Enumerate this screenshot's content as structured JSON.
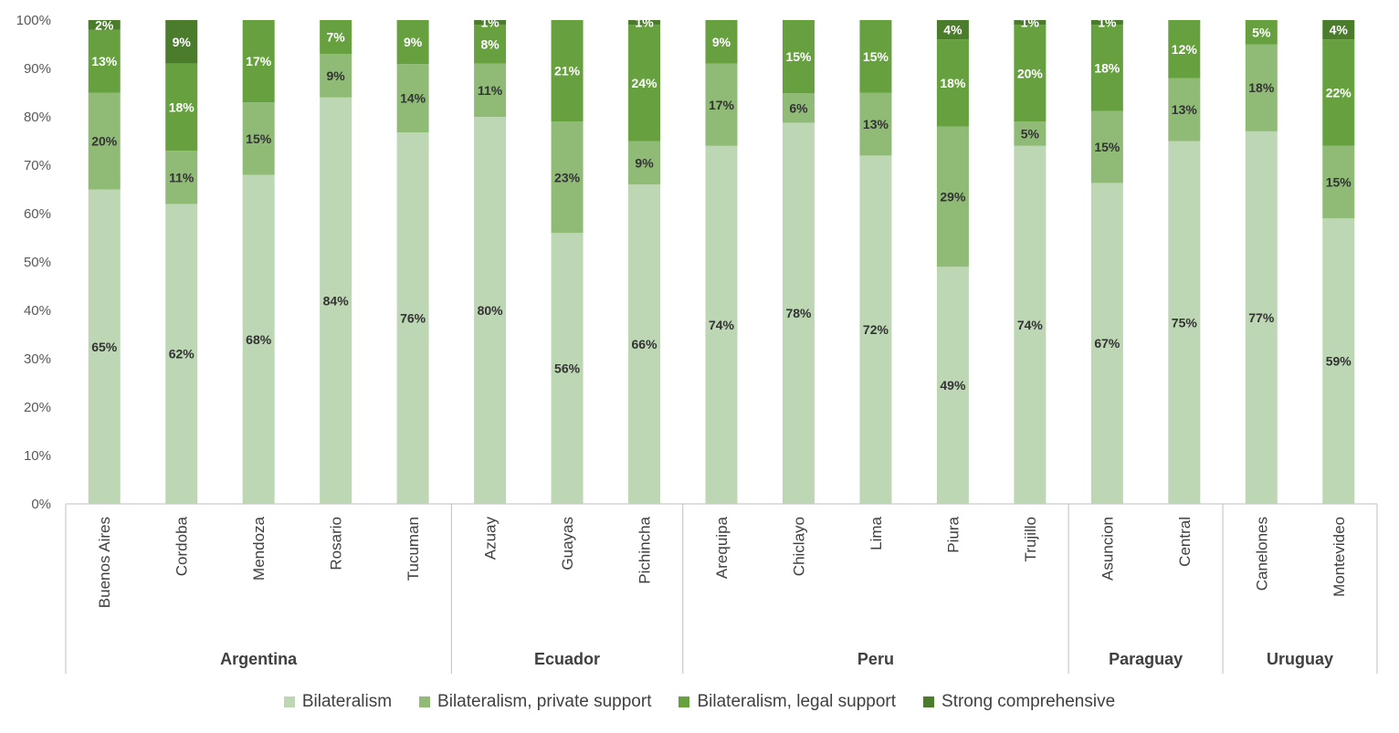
{
  "chart_data": {
    "type": "bar",
    "stacked": true,
    "percent_stacked": true,
    "categories": [
      "Buenos Aires",
      "Cordoba",
      "Mendoza",
      "Rosario",
      "Tucuman",
      "Azuay",
      "Guayas",
      "Pichincha",
      "Arequipa",
      "Chiclayo",
      "Lima",
      "Piura",
      "Trujillo",
      "Asuncion",
      "Central",
      "Canelones",
      "Montevideo"
    ],
    "groups": [
      {
        "name": "Argentina",
        "count": 5
      },
      {
        "name": "Ecuador",
        "count": 3
      },
      {
        "name": "Peru",
        "count": 5
      },
      {
        "name": "Paraguay",
        "count": 2
      },
      {
        "name": "Uruguay",
        "count": 2
      }
    ],
    "series": [
      {
        "name": "Bilateralism",
        "color": "#bdd7b4",
        "label_color": "#333333",
        "values": [
          65,
          62,
          68,
          84,
          76,
          80,
          56,
          66,
          74,
          78,
          72,
          49,
          74,
          67,
          75,
          77,
          59
        ]
      },
      {
        "name": "Bilateralism, private support",
        "color": "#8fbb77",
        "label_color": "#333333",
        "values": [
          20,
          11,
          15,
          9,
          14,
          11,
          23,
          9,
          17,
          6,
          13,
          29,
          5,
          15,
          13,
          18,
          15
        ]
      },
      {
        "name": "Bilateralism, legal support",
        "color": "#66a03f",
        "label_color": "#ffffff",
        "values": [
          13,
          18,
          17,
          7,
          9,
          8,
          21,
          24,
          9,
          15,
          15,
          18,
          20,
          18,
          12,
          5,
          22
        ]
      },
      {
        "name": "Strong comprehensive",
        "color": "#4a7c2c",
        "label_color": "#ffffff",
        "values": [
          2,
          9,
          null,
          null,
          null,
          1,
          null,
          1,
          null,
          null,
          null,
          4,
          1,
          1,
          null,
          null,
          4
        ]
      }
    ],
    "y_ticks": [
      "0%",
      "10%",
      "20%",
      "30%",
      "40%",
      "50%",
      "60%",
      "70%",
      "80%",
      "90%",
      "100%"
    ],
    "ylim": [
      0,
      100
    ],
    "grid": false,
    "legend_position": "bottom",
    "title": "",
    "xlabel": "",
    "ylabel": ""
  }
}
